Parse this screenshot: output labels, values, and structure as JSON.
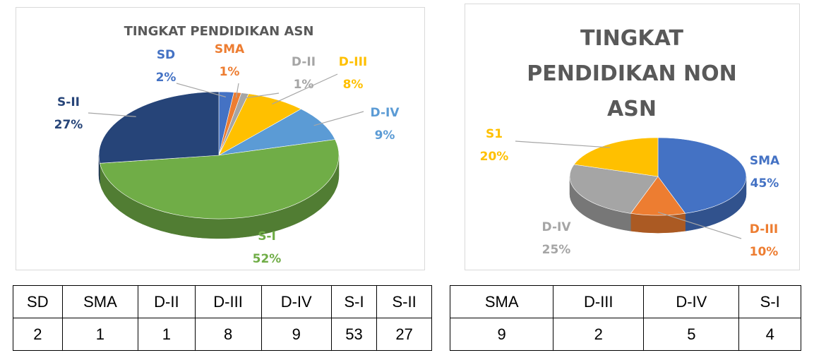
{
  "chart_data": [
    {
      "type": "pie",
      "title": "TINGKAT PENDIDIKAN ASN",
      "categories": [
        "SD",
        "SMA",
        "D-II",
        "D-III",
        "D-IV",
        "S-I",
        "S-II"
      ],
      "values": [
        2,
        1,
        1,
        8,
        9,
        52,
        27
      ],
      "value_labels": [
        "2%",
        "1%",
        "1%",
        "8%",
        "9%",
        "52%",
        "27%"
      ],
      "colors": [
        "#4472c4",
        "#ed7d31",
        "#a5a5a5",
        "#ffc000",
        "#5b9bd5",
        "#70ad47",
        "#264478"
      ]
    },
    {
      "type": "pie",
      "title": "TINGKAT PENDIDIKAN NON ASN",
      "categories": [
        "SMA",
        "D-III",
        "D-IV",
        "S1"
      ],
      "values": [
        45,
        10,
        25,
        20
      ],
      "value_labels": [
        "45%",
        "10%",
        "25%",
        "20%"
      ],
      "colors": [
        "#4472c4",
        "#ed7d31",
        "#a5a5a5",
        "#ffc000"
      ]
    }
  ],
  "tables": [
    {
      "header": [
        "SD",
        "SMA",
        "D-II",
        "D-III",
        "D-IV",
        "S-I",
        "S-II"
      ],
      "rows": [
        [
          "2",
          "1",
          "1",
          "8",
          "9",
          "53",
          "27"
        ]
      ]
    },
    {
      "header": [
        "SMA",
        "D-III",
        "D-IV",
        "S-I"
      ],
      "rows": [
        [
          "9",
          "2",
          "5",
          "4"
        ]
      ]
    }
  ]
}
